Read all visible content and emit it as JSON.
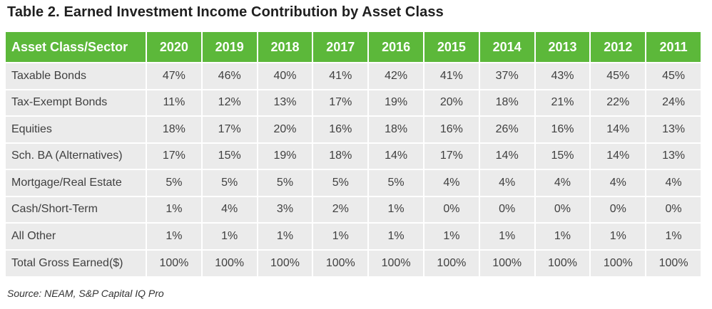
{
  "title": "Table 2. Earned Investment Income Contribution by Asset Class",
  "table": {
    "header": {
      "first": "Asset Class/Sector",
      "years": [
        "2020",
        "2019",
        "2018",
        "2017",
        "2016",
        "2015",
        "2014",
        "2013",
        "2012",
        "2011"
      ]
    },
    "rows": [
      {
        "label": "Taxable Bonds",
        "values": [
          "47%",
          "46%",
          "40%",
          "41%",
          "42%",
          "41%",
          "37%",
          "43%",
          "45%",
          "45%"
        ]
      },
      {
        "label": "Tax-Exempt Bonds",
        "values": [
          "11%",
          "12%",
          "13%",
          "17%",
          "19%",
          "20%",
          "18%",
          "21%",
          "22%",
          "24%"
        ]
      },
      {
        "label": "Equities",
        "values": [
          "18%",
          "17%",
          "20%",
          "16%",
          "18%",
          "16%",
          "26%",
          "16%",
          "14%",
          "13%"
        ]
      },
      {
        "label": "Sch. BA (Alternatives)",
        "values": [
          "17%",
          "15%",
          "19%",
          "18%",
          "14%",
          "17%",
          "14%",
          "15%",
          "14%",
          "13%"
        ]
      },
      {
        "label": "Mortgage/Real Estate",
        "values": [
          "5%",
          "5%",
          "5%",
          "5%",
          "5%",
          "4%",
          "4%",
          "4%",
          "4%",
          "4%"
        ]
      },
      {
        "label": "Cash/Short-Term",
        "values": [
          "1%",
          "4%",
          "3%",
          "2%",
          "1%",
          "0%",
          "0%",
          "0%",
          "0%",
          "0%"
        ]
      },
      {
        "label": "All Other",
        "values": [
          "1%",
          "1%",
          "1%",
          "1%",
          "1%",
          "1%",
          "1%",
          "1%",
          "1%",
          "1%"
        ]
      },
      {
        "label": "Total Gross Earned($)",
        "values": [
          "100%",
          "100%",
          "100%",
          "100%",
          "100%",
          "100%",
          "100%",
          "100%",
          "100%",
          "100%"
        ]
      }
    ]
  },
  "source": "Source: NEAM, S&P Capital IQ Pro",
  "colors": {
    "header_bg": "#5cb83a",
    "header_text": "#ffffff",
    "cell_bg": "#ebebeb",
    "cell_text": "#404040"
  }
}
